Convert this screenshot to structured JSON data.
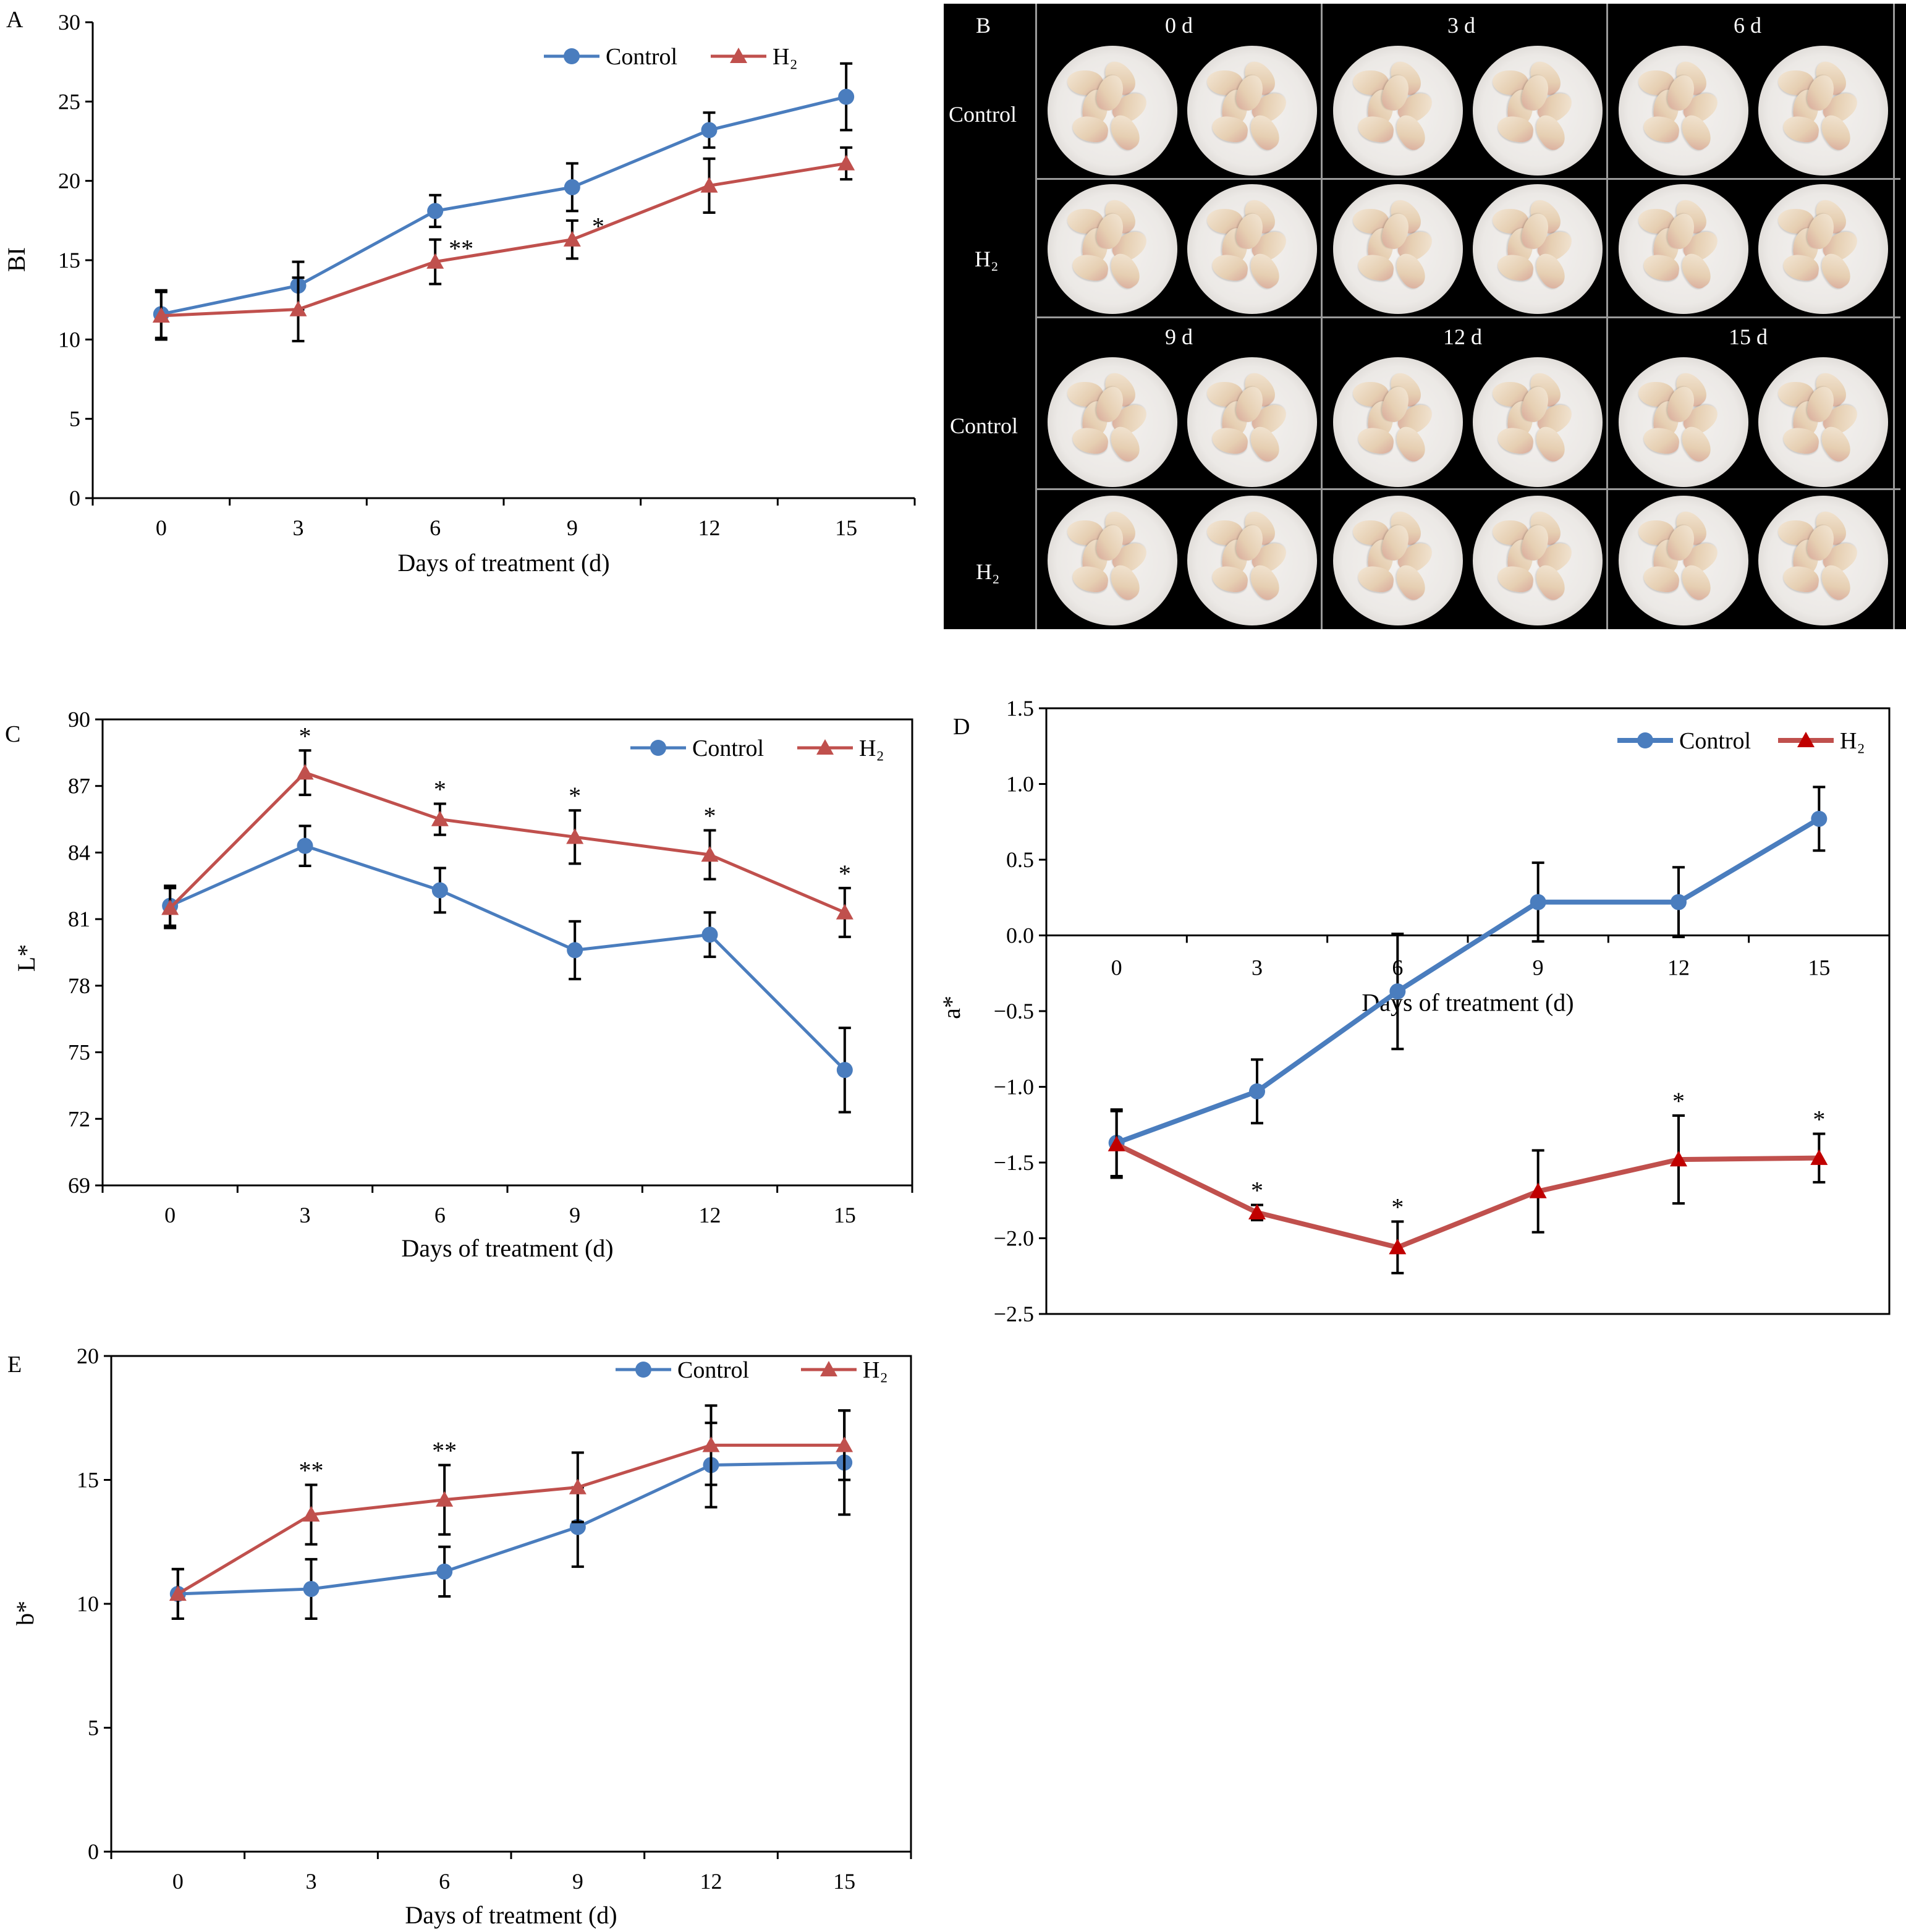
{
  "colors": {
    "control": "#4a7dbe",
    "h2": "#c0504d",
    "h2_marker_d": "#c00000"
  },
  "legend": {
    "control": "Control",
    "h2": "H₂"
  },
  "photo_panel": {
    "letter": "B",
    "day_labels": [
      "0 d",
      "3 d",
      "6 d",
      "9 d",
      "12 d",
      "15 d"
    ],
    "row_labels": [
      "Control",
      "H₂",
      "Control",
      "H₂"
    ]
  },
  "chart_data": [
    {
      "panel": "A",
      "type": "line",
      "xlabel": "Days of treatment (d)",
      "ylabel": "BI",
      "x": [
        0,
        3,
        6,
        9,
        12,
        15
      ],
      "ylim": [
        0,
        30
      ],
      "yticks": [
        "0",
        "5",
        "10",
        "15",
        "20",
        "25",
        "30"
      ],
      "series": [
        {
          "name": "Control",
          "values": [
            11.6,
            13.4,
            18.1,
            19.6,
            23.2,
            25.3
          ],
          "errors": [
            1.5,
            1.5,
            1.0,
            1.5,
            1.1,
            2.1
          ]
        },
        {
          "name": "H₂",
          "values": [
            11.5,
            11.9,
            14.9,
            16.3,
            19.7,
            21.1
          ],
          "errors": [
            1.5,
            2.0,
            1.4,
            1.2,
            1.7,
            1.0
          ]
        }
      ],
      "annotations": [
        {
          "x": 6,
          "text": "**"
        },
        {
          "x": 9,
          "text": "*"
        }
      ]
    },
    {
      "panel": "C",
      "type": "line",
      "xlabel": "Days of treatment (d)",
      "ylabel": "L*",
      "x": [
        0,
        3,
        6,
        9,
        12,
        15
      ],
      "ylim": [
        69,
        90
      ],
      "yticks": [
        "69",
        "72",
        "75",
        "78",
        "81",
        "84",
        "87",
        "90"
      ],
      "series": [
        {
          "name": "Control",
          "values": [
            81.6,
            84.3,
            82.3,
            79.6,
            80.3,
            74.2
          ],
          "errors": [
            0.9,
            0.9,
            1.0,
            1.3,
            1.0,
            1.9
          ]
        },
        {
          "name": "H₂",
          "values": [
            81.5,
            87.6,
            85.5,
            84.7,
            83.9,
            81.3
          ],
          "errors": [
            0.9,
            1.0,
            0.7,
            1.2,
            1.1,
            1.1
          ]
        }
      ],
      "annotations": [
        {
          "x": 3,
          "text": "*"
        },
        {
          "x": 6,
          "text": "*"
        },
        {
          "x": 9,
          "text": "*"
        },
        {
          "x": 12,
          "text": "*"
        },
        {
          "x": 15,
          "text": "*"
        }
      ]
    },
    {
      "panel": "D",
      "type": "line",
      "xlabel": "Days of treatment (d)",
      "ylabel": "a*",
      "x": [
        0,
        3,
        6,
        9,
        12,
        15
      ],
      "ylim": [
        -2.5,
        1.5
      ],
      "yticks": [
        "−2.5",
        "−2.0",
        "−1.5",
        "−1.0",
        "−0.5",
        "0.0",
        "0.5",
        "1.0",
        "1.5"
      ],
      "series": [
        {
          "name": "Control",
          "values": [
            -1.37,
            -1.03,
            -0.37,
            0.22,
            0.22,
            0.77
          ],
          "errors": [
            0.22,
            0.21,
            0.38,
            0.26,
            0.23,
            0.21
          ]
        },
        {
          "name": "H₂",
          "values": [
            -1.38,
            -1.83,
            -2.06,
            -1.69,
            -1.48,
            -1.47
          ],
          "errors": [
            0.22,
            0.05,
            0.17,
            0.27,
            0.29,
            0.16
          ]
        }
      ],
      "annotations": [
        {
          "x": 3,
          "text": "*"
        },
        {
          "x": 6,
          "text": "*"
        },
        {
          "x": 12,
          "text": "*"
        },
        {
          "x": 15,
          "text": "*"
        }
      ]
    },
    {
      "panel": "E",
      "type": "line",
      "xlabel": "Days of treatment (d)",
      "ylabel": "b*",
      "x": [
        0,
        3,
        6,
        9,
        12,
        15
      ],
      "ylim": [
        0,
        20
      ],
      "yticks": [
        "0",
        "5",
        "10",
        "15",
        "20"
      ],
      "series": [
        {
          "name": "Control",
          "values": [
            10.4,
            10.6,
            11.3,
            13.1,
            15.6,
            15.7
          ],
          "errors": [
            1.0,
            1.2,
            1.0,
            1.6,
            1.7,
            2.1
          ]
        },
        {
          "name": "H₂",
          "values": [
            10.4,
            13.6,
            14.2,
            14.7,
            16.4,
            16.4
          ],
          "errors": [
            1.0,
            1.2,
            1.4,
            1.4,
            1.6,
            1.4
          ]
        }
      ],
      "annotations": [
        {
          "x": 3,
          "text": "**"
        },
        {
          "x": 6,
          "text": "**"
        }
      ]
    }
  ]
}
